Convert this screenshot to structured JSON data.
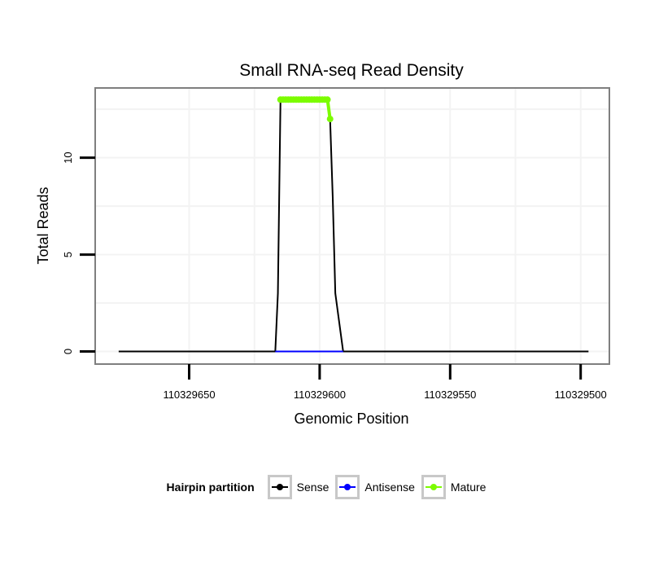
{
  "chart_data": {
    "type": "line",
    "title": "Small RNA-seq Read Density",
    "xlabel": "Genomic Position",
    "ylabel": "Total Reads",
    "x_reversed": true,
    "xlim": [
      110329686,
      110329489
    ],
    "ylim": [
      -0.65,
      13.6
    ],
    "x_ticks": [
      110329650,
      110329600,
      110329550,
      110329500
    ],
    "x_tick_labels": [
      "110329650",
      "110329600",
      "110329550",
      "110329500"
    ],
    "y_ticks": [
      0,
      5,
      10
    ],
    "y_tick_labels": [
      "0",
      "5",
      "10"
    ],
    "grid": true,
    "legend_position": "bottom",
    "series": [
      {
        "name": "Sense",
        "color": "#000000",
        "x": [
          110329677,
          110329617,
          110329616,
          110329615,
          110329597,
          110329596,
          110329595,
          110329594,
          110329592,
          110329591,
          110329497
        ],
        "y": [
          0,
          0,
          3,
          13,
          13,
          12,
          8,
          3,
          1,
          0,
          0
        ]
      },
      {
        "name": "Antisense",
        "color": "#0000ff",
        "x": [
          110329617,
          110329591
        ],
        "y": [
          0,
          0
        ]
      },
      {
        "name": "Mature",
        "color": "#7cfc00",
        "x": [
          110329615,
          110329614,
          110329613,
          110329612,
          110329611,
          110329610,
          110329609,
          110329608,
          110329607,
          110329606,
          110329605,
          110329604,
          110329603,
          110329602,
          110329601,
          110329600,
          110329599,
          110329598,
          110329597,
          110329596
        ],
        "y": [
          13,
          13,
          13,
          13,
          13,
          13,
          13,
          13,
          13,
          13,
          13,
          13,
          13,
          13,
          13,
          13,
          13,
          13,
          13,
          12
        ]
      }
    ]
  },
  "legend": {
    "title": "Hairpin partition",
    "items": [
      {
        "label": "Sense",
        "color": "#000000"
      },
      {
        "label": "Antisense",
        "color": "#0000ff"
      },
      {
        "label": "Mature",
        "color": "#7cfc00"
      }
    ]
  }
}
